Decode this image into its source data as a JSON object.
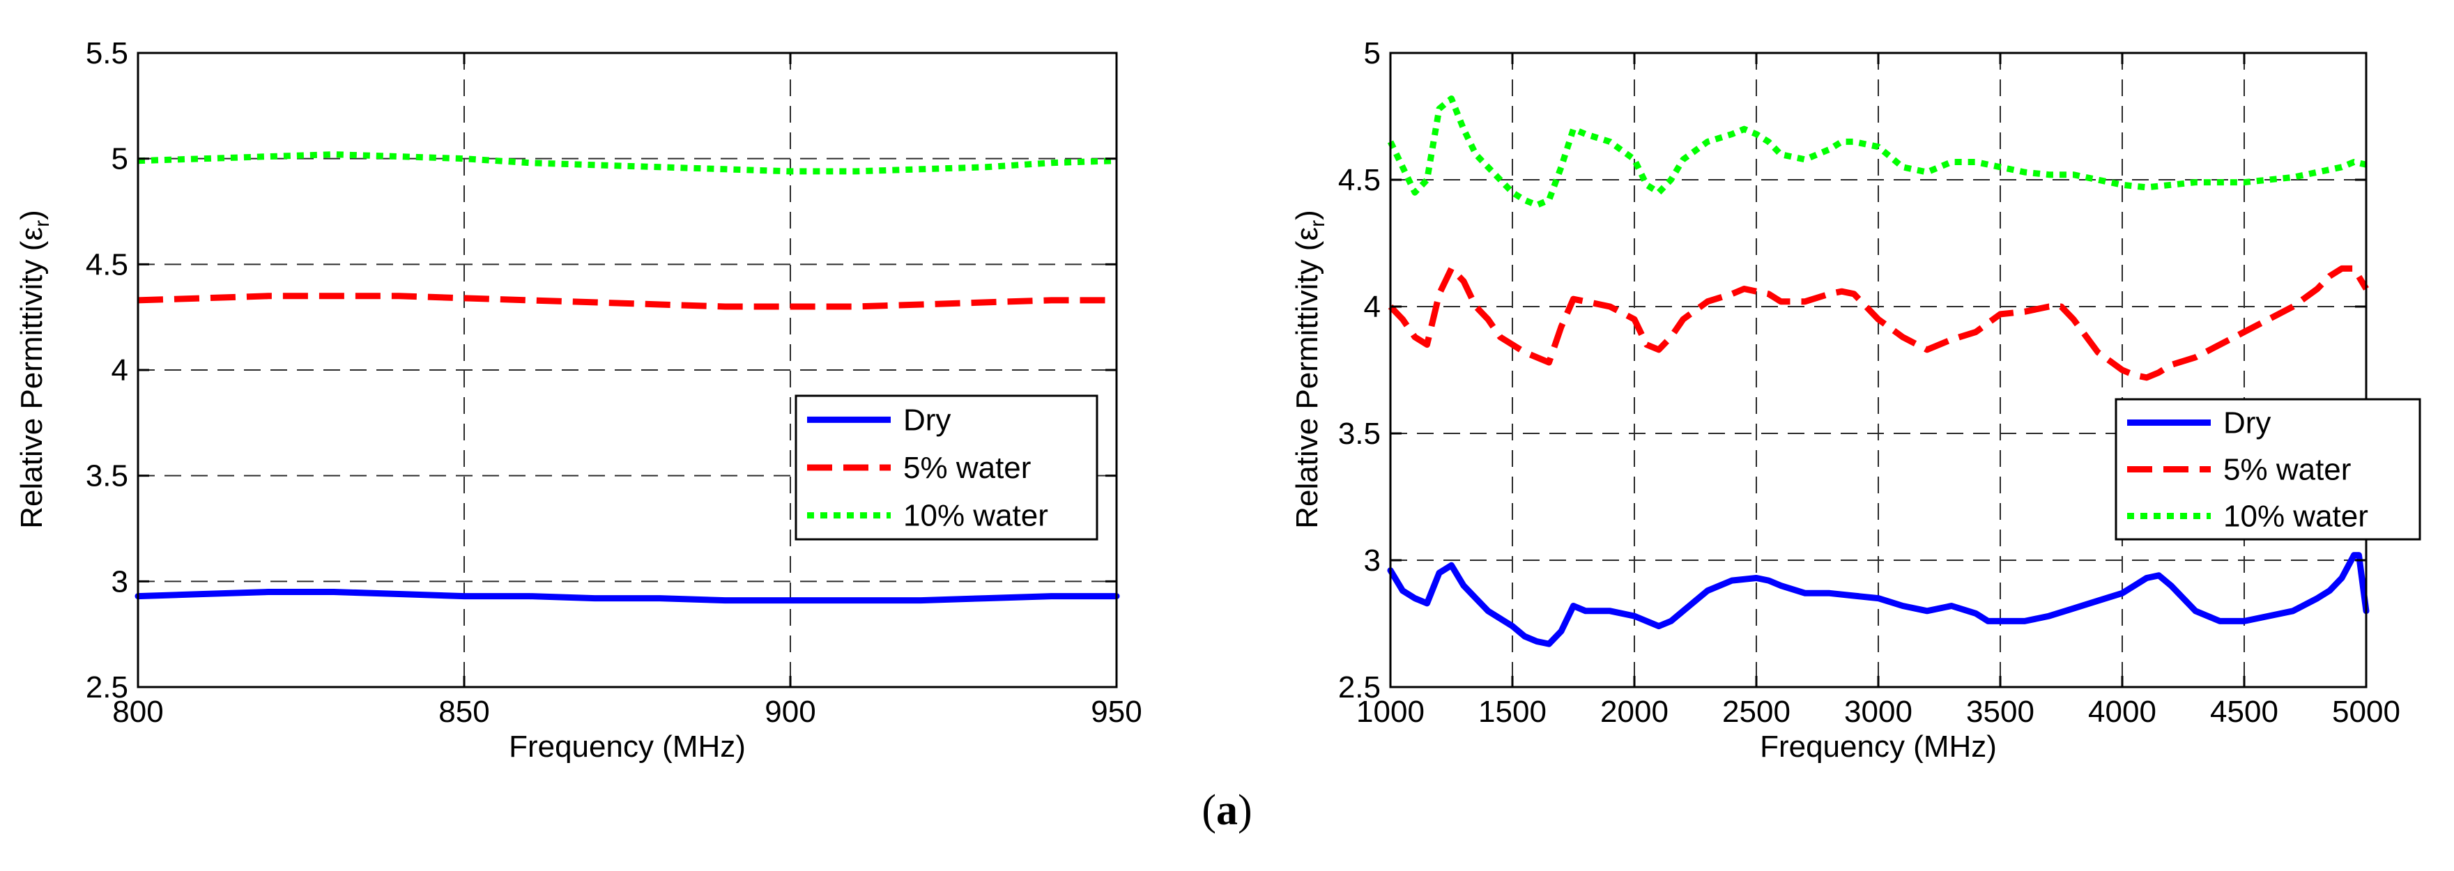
{
  "caption": {
    "open": "(",
    "letter": "a",
    "close": ")"
  },
  "chart_data": [
    {
      "type": "line",
      "title": "",
      "xlabel": "Frequency (MHz)",
      "ylabel_main": "Relative Permittivity (ε",
      "ylabel_sub": "r",
      "ylabel_close": ")",
      "xlim": [
        800,
        950
      ],
      "ylim": [
        2.5,
        5.5
      ],
      "xticks": [
        800,
        850,
        900,
        950
      ],
      "yticks": [
        2.5,
        3,
        3.5,
        4,
        4.5,
        5,
        5.5
      ],
      "xtick_labels": [
        "800",
        "850",
        "900",
        "950"
      ],
      "ytick_labels": [
        "2.5",
        "3",
        "3.5",
        "4",
        "4.5",
        "5",
        "5.5"
      ],
      "grid": true,
      "legend_position": "right-middle",
      "series": [
        {
          "name": "Dry",
          "color": "#0000ff",
          "style": "solid",
          "x": [
            800,
            810,
            820,
            830,
            840,
            850,
            860,
            870,
            880,
            890,
            900,
            910,
            920,
            930,
            940,
            950
          ],
          "y": [
            2.93,
            2.94,
            2.95,
            2.95,
            2.94,
            2.93,
            2.93,
            2.92,
            2.92,
            2.91,
            2.91,
            2.91,
            2.91,
            2.92,
            2.93,
            2.93
          ]
        },
        {
          "name": "5% water",
          "color": "#ff0000",
          "style": "dashed",
          "x": [
            800,
            810,
            820,
            830,
            840,
            850,
            860,
            870,
            880,
            890,
            900,
            910,
            920,
            930,
            940,
            950
          ],
          "y": [
            4.33,
            4.34,
            4.35,
            4.35,
            4.35,
            4.34,
            4.33,
            4.32,
            4.31,
            4.3,
            4.3,
            4.3,
            4.31,
            4.32,
            4.33,
            4.33
          ]
        },
        {
          "name": "10% water",
          "color": "#00ff00",
          "style": "dotted",
          "x": [
            800,
            810,
            820,
            830,
            840,
            850,
            860,
            870,
            880,
            890,
            900,
            910,
            920,
            930,
            940,
            950
          ],
          "y": [
            4.99,
            5.0,
            5.01,
            5.02,
            5.01,
            5.0,
            4.98,
            4.97,
            4.96,
            4.95,
            4.94,
            4.94,
            4.95,
            4.96,
            4.98,
            4.99
          ]
        }
      ]
    },
    {
      "type": "line",
      "title": "",
      "xlabel": "Frequency (MHz)",
      "ylabel_main": "Relative Permittivity (ε",
      "ylabel_sub": "r",
      "ylabel_close": ")",
      "xlim": [
        1000,
        5000
      ],
      "ylim": [
        2.5,
        5
      ],
      "xticks": [
        1000,
        1500,
        2000,
        2500,
        3000,
        3500,
        4000,
        4500,
        5000
      ],
      "yticks": [
        2.5,
        3,
        3.5,
        4,
        4.5,
        5
      ],
      "xtick_labels": [
        "1000",
        "1500",
        "2000",
        "2500",
        "3000",
        "3500",
        "4000",
        "4500",
        "5000"
      ],
      "ytick_labels": [
        "2.5",
        "3",
        "3.5",
        "4",
        "4.5",
        "5"
      ],
      "grid": true,
      "legend_position": "right-middle",
      "series": [
        {
          "name": "Dry",
          "color": "#0000ff",
          "style": "solid",
          "x": [
            1000,
            1050,
            1100,
            1150,
            1200,
            1250,
            1300,
            1350,
            1400,
            1450,
            1500,
            1550,
            1600,
            1650,
            1700,
            1750,
            1800,
            1900,
            2000,
            2050,
            2100,
            2150,
            2200,
            2300,
            2400,
            2500,
            2550,
            2600,
            2700,
            2800,
            2900,
            3000,
            3100,
            3200,
            3300,
            3400,
            3450,
            3500,
            3600,
            3700,
            3800,
            3900,
            4000,
            4050,
            4100,
            4150,
            4200,
            4300,
            4400,
            4500,
            4600,
            4700,
            4800,
            4850,
            4900,
            4950,
            4970,
            5000
          ],
          "y": [
            2.96,
            2.88,
            2.85,
            2.83,
            2.95,
            2.98,
            2.9,
            2.85,
            2.8,
            2.77,
            2.74,
            2.7,
            2.68,
            2.67,
            2.72,
            2.82,
            2.8,
            2.8,
            2.78,
            2.76,
            2.74,
            2.76,
            2.8,
            2.88,
            2.92,
            2.93,
            2.92,
            2.9,
            2.87,
            2.87,
            2.86,
            2.85,
            2.82,
            2.8,
            2.82,
            2.79,
            2.76,
            2.76,
            2.76,
            2.78,
            2.81,
            2.84,
            2.87,
            2.9,
            2.93,
            2.94,
            2.9,
            2.8,
            2.76,
            2.76,
            2.78,
            2.8,
            2.85,
            2.88,
            2.93,
            3.02,
            3.02,
            2.8
          ]
        },
        {
          "name": "5% water",
          "color": "#ff0000",
          "style": "dashed",
          "x": [
            1000,
            1050,
            1100,
            1150,
            1200,
            1250,
            1300,
            1350,
            1400,
            1450,
            1500,
            1550,
            1600,
            1650,
            1700,
            1750,
            1800,
            1900,
            2000,
            2050,
            2100,
            2150,
            2200,
            2300,
            2400,
            2450,
            2500,
            2550,
            2600,
            2700,
            2800,
            2850,
            2900,
            3000,
            3100,
            3200,
            3300,
            3400,
            3500,
            3600,
            3700,
            3750,
            3800,
            3900,
            4000,
            4050,
            4100,
            4150,
            4200,
            4300,
            4400,
            4500,
            4600,
            4700,
            4800,
            4850,
            4900,
            4950,
            5000
          ],
          "y": [
            4.0,
            3.95,
            3.88,
            3.85,
            4.05,
            4.15,
            4.1,
            4.0,
            3.95,
            3.88,
            3.85,
            3.82,
            3.8,
            3.78,
            3.92,
            4.03,
            4.02,
            4.0,
            3.95,
            3.85,
            3.83,
            3.88,
            3.95,
            4.02,
            4.05,
            4.07,
            4.06,
            4.05,
            4.02,
            4.02,
            4.05,
            4.06,
            4.05,
            3.95,
            3.88,
            3.83,
            3.87,
            3.9,
            3.97,
            3.98,
            4.0,
            4.0,
            3.95,
            3.82,
            3.75,
            3.73,
            3.72,
            3.74,
            3.77,
            3.8,
            3.85,
            3.9,
            3.95,
            4.0,
            4.07,
            4.12,
            4.15,
            4.15,
            4.07
          ]
        },
        {
          "name": "10% water",
          "color": "#00ff00",
          "style": "dotted",
          "x": [
            1000,
            1050,
            1100,
            1150,
            1200,
            1250,
            1300,
            1350,
            1400,
            1450,
            1500,
            1550,
            1600,
            1650,
            1700,
            1750,
            1800,
            1900,
            2000,
            2050,
            2100,
            2150,
            2200,
            2300,
            2400,
            2450,
            2500,
            2550,
            2600,
            2700,
            2800,
            2850,
            2900,
            3000,
            3100,
            3200,
            3300,
            3400,
            3500,
            3600,
            3700,
            3800,
            3900,
            4000,
            4100,
            4200,
            4300,
            4400,
            4500,
            4600,
            4700,
            4800,
            4900,
            4950,
            5000
          ],
          "y": [
            4.65,
            4.55,
            4.45,
            4.5,
            4.78,
            4.82,
            4.7,
            4.6,
            4.55,
            4.5,
            4.45,
            4.42,
            4.4,
            4.42,
            4.55,
            4.7,
            4.68,
            4.65,
            4.58,
            4.48,
            4.45,
            4.5,
            4.58,
            4.65,
            4.68,
            4.7,
            4.68,
            4.65,
            4.6,
            4.58,
            4.62,
            4.65,
            4.65,
            4.63,
            4.55,
            4.53,
            4.57,
            4.57,
            4.55,
            4.53,
            4.52,
            4.52,
            4.5,
            4.48,
            4.47,
            4.48,
            4.49,
            4.49,
            4.49,
            4.5,
            4.51,
            4.53,
            4.55,
            4.57,
            4.56
          ]
        }
      ]
    }
  ]
}
